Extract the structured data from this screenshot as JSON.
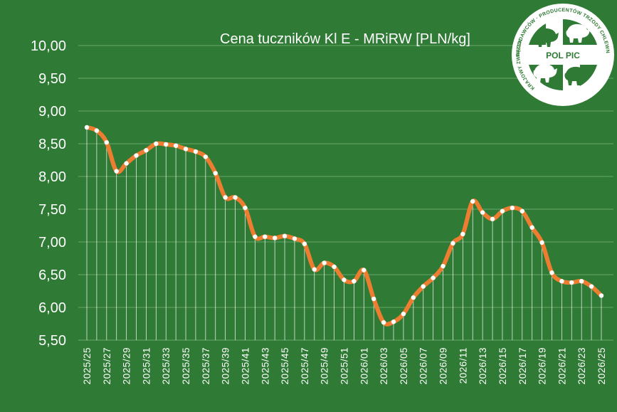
{
  "chart_data": {
    "type": "line",
    "title": "Cena tuczników Kl E - MRiRW [PLN/kg]",
    "xlabel": "",
    "ylabel": "",
    "ylim": [
      5.5,
      10.0
    ],
    "yticks": [
      "10,00",
      "9,50",
      "9,00",
      "8,50",
      "8,00",
      "7,50",
      "7,00",
      "6,50",
      "6,00",
      "5,50"
    ],
    "ytick_values": [
      10.0,
      9.5,
      9.0,
      8.5,
      8.0,
      7.5,
      7.0,
      6.5,
      6.0,
      5.5
    ],
    "grid": true,
    "line_color": "#ed7d31",
    "point_color": "#ffffff",
    "x": [
      "2025/25",
      "2025/26",
      "2025/27",
      "2025/28",
      "2025/29",
      "2025/30",
      "2025/31",
      "2025/32",
      "2025/33",
      "2025/34",
      "2025/35",
      "2025/36",
      "2025/37",
      "2025/38",
      "2025/39",
      "2025/40",
      "2025/41",
      "2025/42",
      "2025/43",
      "2025/44",
      "2025/45",
      "2025/46",
      "2025/47",
      "2025/48",
      "2025/49",
      "2025/50",
      "2025/51",
      "2025/52",
      "2026/01",
      "2026/02",
      "2026/03",
      "2026/04",
      "2026/05",
      "2026/06",
      "2026/07",
      "2026/08",
      "2026/09",
      "2026/10",
      "2026/11",
      "2026/12",
      "2026/13",
      "2026/14",
      "2026/15",
      "2026/16",
      "2026/17",
      "2026/18",
      "2026/19",
      "2026/20",
      "2026/21",
      "2026/22",
      "2026/23",
      "2026/24",
      "2026/25"
    ],
    "x_tick_labels": [
      "2025/25",
      "2025/27",
      "2025/29",
      "2025/31",
      "2025/33",
      "2025/35",
      "2025/37",
      "2025/39",
      "2025/41",
      "2025/43",
      "2025/45",
      "2025/47",
      "2025/49",
      "2025/51",
      "2026/01",
      "2026/03",
      "2026/05",
      "2026/07",
      "2026/09",
      "2026/11",
      "2026/13",
      "2026/15",
      "2026/17",
      "2026/19",
      "2026/21",
      "2026/23",
      "2026/25"
    ],
    "values": [
      8.75,
      8.7,
      8.52,
      8.08,
      8.2,
      8.32,
      8.4,
      8.5,
      8.49,
      8.47,
      8.42,
      8.38,
      8.3,
      8.05,
      7.68,
      7.68,
      7.52,
      7.08,
      7.08,
      7.06,
      7.09,
      7.05,
      6.97,
      6.58,
      6.68,
      6.62,
      6.42,
      6.4,
      6.57,
      6.13,
      5.77,
      5.78,
      5.9,
      6.15,
      6.32,
      6.45,
      6.63,
      6.98,
      7.12,
      7.62,
      7.45,
      7.35,
      7.47,
      7.52,
      7.47,
      7.22,
      6.99,
      6.53,
      6.4,
      6.38,
      6.4,
      6.32,
      6.18
    ]
  },
  "logo": {
    "center_text": "POL PIC",
    "ring_text_top": "PRACODAWCÓW · PRODUCENTÓW TRZODY CHLEWNEJ",
    "ring_text_left": "KRAJOWY ZWIĄZEK"
  }
}
